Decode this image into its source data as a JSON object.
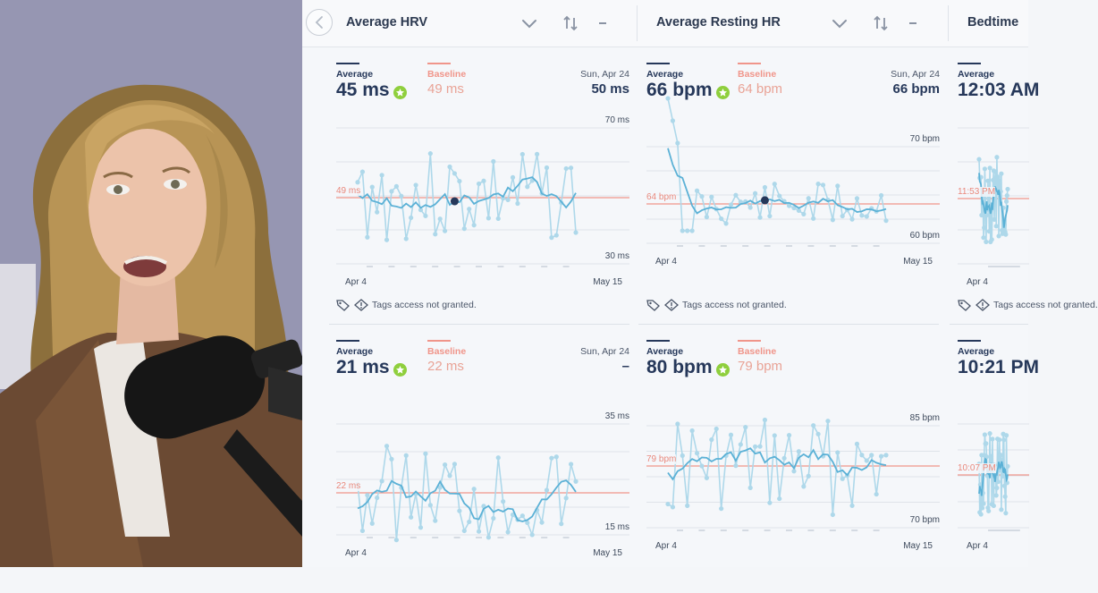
{
  "header": {
    "columns": [
      {
        "title": "Average HRV"
      },
      {
        "title": "Average Resting HR"
      },
      {
        "title": "Bedtime"
      }
    ]
  },
  "legend": {
    "average": "Average",
    "baseline": "Baseline"
  },
  "tags_message": "Tags access not granted.",
  "colors": {
    "accent": "#5bb1d6",
    "baseline": "#f0958a",
    "navy": "#26385a",
    "badge": "#8fcf3d"
  },
  "cards": [
    {
      "average": "45 ms",
      "baseline": "49 ms",
      "date": "Sun, Apr 24",
      "date_value": "50 ms",
      "y_top": "70 ms",
      "y_bottom": "30 ms",
      "baseline_label": "49 ms",
      "x_start": "Apr 4",
      "x_end": "May 15"
    },
    {
      "average": "66 bpm",
      "baseline": "64 bpm",
      "date": "Sun, Apr 24",
      "date_value": "66 bpm",
      "y_top": "70 bpm",
      "y_bottom": "60 bpm",
      "baseline_label": "64 bpm",
      "x_start": "Apr 4",
      "x_end": "May 15"
    },
    {
      "average": "12:03 AM",
      "baseline_label": "11:53 PM",
      "x_start": "Apr 4"
    },
    {
      "average": "21 ms",
      "baseline": "22 ms",
      "date": "Sun, Apr 24",
      "date_value": "–",
      "y_top": "35 ms",
      "y_bottom": "15 ms",
      "baseline_label": "22 ms",
      "x_start": "Apr 4",
      "x_end": "May 15"
    },
    {
      "average": "80 bpm",
      "baseline": "79 bpm",
      "y_top": "85 bpm",
      "y_bottom": "70 bpm",
      "baseline_label": "79 bpm",
      "x_start": "Apr 4",
      "x_end": "May 15"
    },
    {
      "average": "10:21 PM",
      "baseline_label": "10:07 PM",
      "x_start": "Apr 4"
    }
  ]
}
